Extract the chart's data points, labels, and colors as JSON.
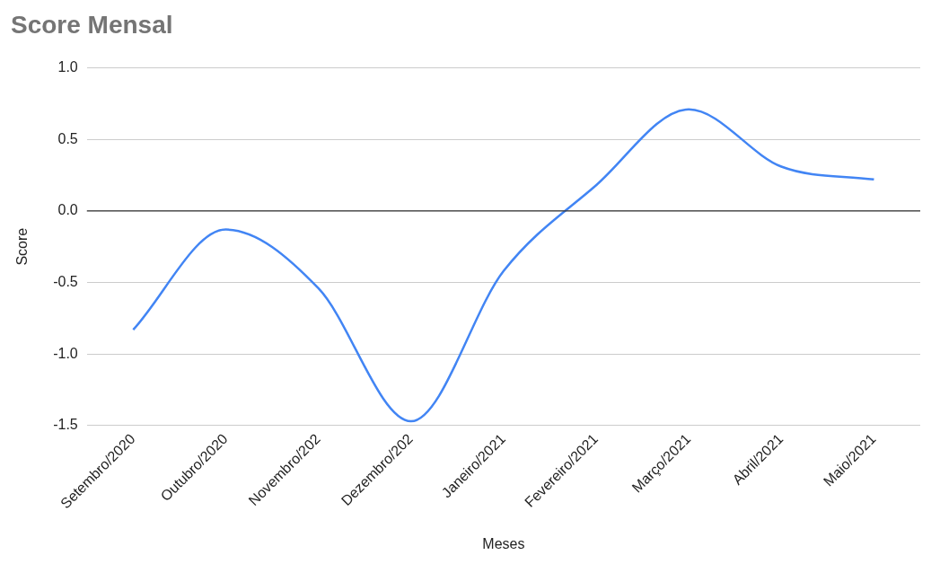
{
  "chart_data": {
    "type": "line",
    "title": "Score Mensal",
    "xlabel": "Meses",
    "ylabel": "Score",
    "categories": [
      "Setembro/2020",
      "Outubro/2020",
      "Novembro/202",
      "Dezembro/202",
      "Janeiro/2021",
      "Fevereiro/2021",
      "Março/2021",
      "Abril/2021",
      "Maio/2021"
    ],
    "series": [
      {
        "color": "#4285f4",
        "values": [
          -0.83,
          -0.13,
          -0.54,
          -1.47,
          -0.42,
          0.18,
          0.71,
          0.31,
          0.22
        ]
      }
    ],
    "ylim": [
      -1.5,
      1.0
    ],
    "yticks": [
      -1.5,
      {
        "value": -1,
        "label": "-1.0"
      },
      -0.5,
      {
        "value": 0,
        "label": "0.0"
      },
      0.5,
      {
        "value": 1,
        "label": "1.0"
      }
    ],
    "ref_lines": [
      {
        "axis": "y",
        "value": 0,
        "color": "#333333"
      }
    ],
    "grid": "y",
    "legend": false,
    "marker": "none",
    "line_style": "solid"
  }
}
